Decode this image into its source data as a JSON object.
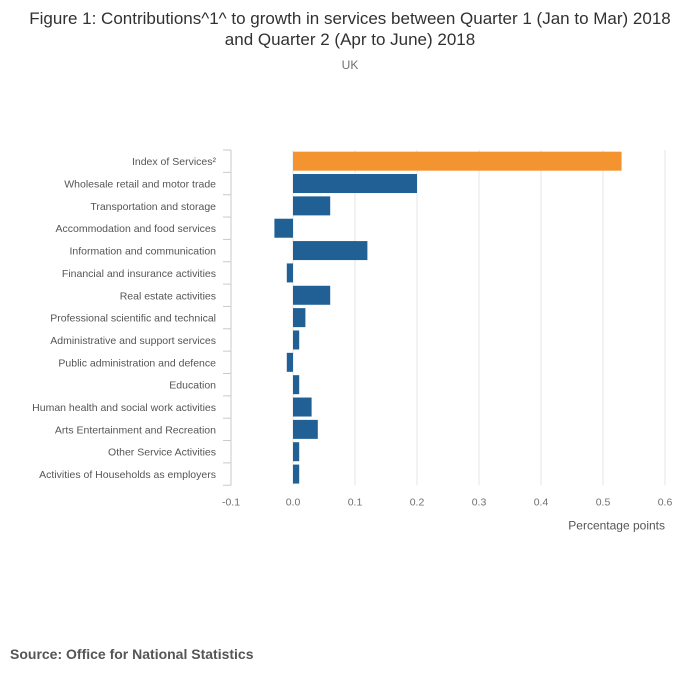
{
  "title": "Figure 1: Contributions^1^ to growth in services between Quarter 1 (Jan to Mar) 2018 and Quarter 2 (Apr to June) 2018",
  "subtitle": "UK",
  "source": "Source: Office for National Statistics",
  "colors": {
    "highlight": "#f39431",
    "bar": "#206095",
    "grid": "#e5e5e5",
    "axis": "#c9c9c9"
  },
  "chart_data": {
    "type": "bar",
    "orientation": "horizontal",
    "categories": [
      "Index of Services²",
      "Wholesale retail and motor trade",
      "Transportation and storage",
      "Accommodation and food services",
      "Information and communication",
      "Financial and insurance activities",
      "Real estate activities",
      "Professional scientific and technical",
      "Administrative and support services",
      "Public administration and defence",
      "Education",
      "Human health and social work activities",
      "Arts Entertainment and Recreation",
      "Other Service Activities",
      "Activities of Households as employers"
    ],
    "values": [
      0.53,
      0.2,
      0.06,
      -0.03,
      0.12,
      -0.01,
      0.06,
      0.02,
      0.01,
      -0.01,
      0.01,
      0.03,
      0.04,
      0.01,
      0.01
    ],
    "highlight_index": 0,
    "xlabel": "Percentage points",
    "ylabel": "",
    "xlim": [
      -0.1,
      0.6
    ],
    "xticks": [
      -0.1,
      0.0,
      0.1,
      0.2,
      0.3,
      0.4,
      0.5,
      0.6
    ],
    "xtick_labels": [
      "-0.1",
      "0.0",
      "0.1",
      "0.2",
      "0.3",
      "0.4",
      "0.5",
      "0.6"
    ],
    "grid": true,
    "legend": "none"
  }
}
